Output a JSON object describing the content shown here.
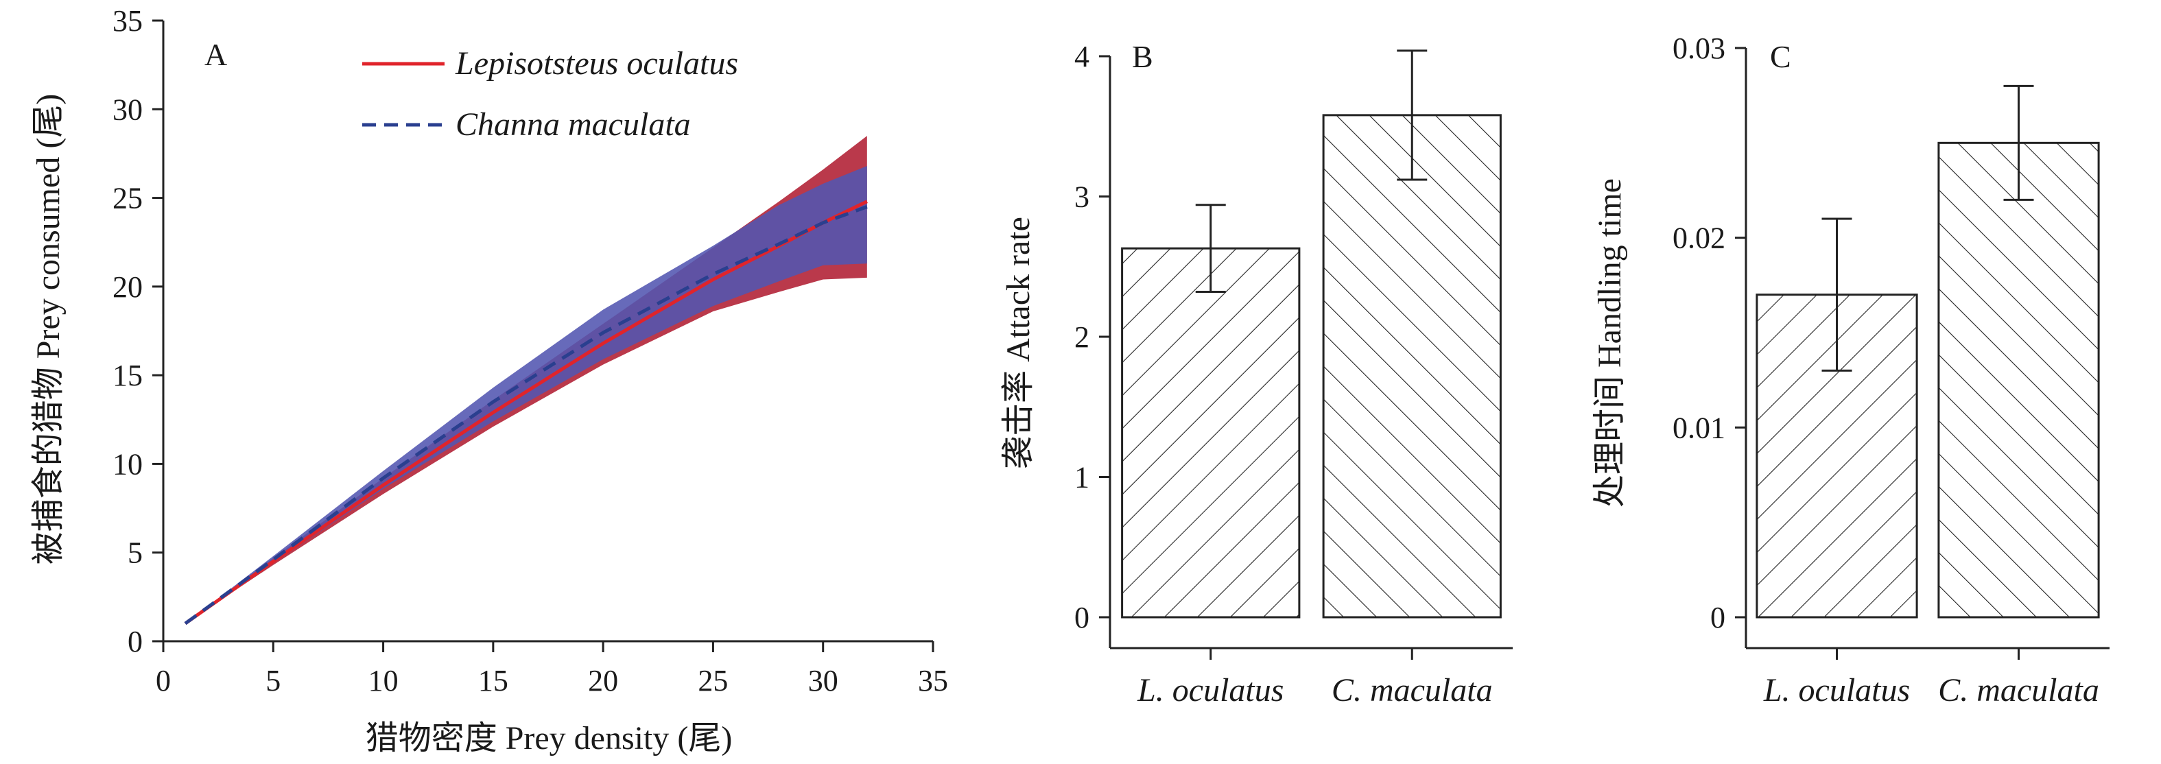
{
  "chart_data": [
    {
      "panel": "A",
      "type": "line",
      "xlabel": "猎物密度 Prey density (尾)",
      "ylabel": "被捕食的猎物 Prey consumed (尾)",
      "xlim": [
        0,
        35
      ],
      "ylim": [
        0,
        35
      ],
      "xticks": [
        0,
        5,
        10,
        15,
        20,
        25,
        30,
        35
      ],
      "yticks": [
        0,
        5,
        10,
        15,
        20,
        25,
        30,
        35
      ],
      "grid": false,
      "legend_position": "top-center",
      "series": [
        {
          "name": "Lepisotsteus oculatus",
          "style": "solid",
          "color": "#e0242b",
          "band_color": "#b01e32",
          "x": [
            1,
            5,
            10,
            15,
            20,
            25,
            28,
            30,
            32
          ],
          "y": [
            1,
            4.5,
            8.8,
            12.9,
            16.8,
            20.4,
            22.3,
            23.6,
            24.8
          ],
          "lower": [
            1,
            4.3,
            8.3,
            12.1,
            15.6,
            18.6,
            19.7,
            20.4,
            20.5
          ],
          "upper": [
            1,
            4.7,
            9.2,
            13.6,
            17.9,
            22.2,
            24.8,
            26.6,
            28.5
          ]
        },
        {
          "name": "Channa maculata",
          "style": "dashed",
          "color": "#2a3f8f",
          "band_color": "#5255b0",
          "x": [
            1,
            5,
            10,
            15,
            20,
            25,
            28,
            30,
            32
          ],
          "y": [
            1,
            4.6,
            9.2,
            13.5,
            17.4,
            20.7,
            22.4,
            23.6,
            24.5
          ],
          "lower": [
            1,
            4.4,
            8.6,
            12.4,
            15.9,
            18.9,
            20.3,
            21.2,
            21.3
          ],
          "upper": [
            1,
            4.8,
            9.6,
            14.3,
            18.7,
            22.3,
            24.6,
            25.8,
            26.8
          ]
        }
      ]
    },
    {
      "panel": "B",
      "type": "bar",
      "ylabel": "袭击率 Attack rate",
      "categories": [
        "L. oculatus",
        "C. maculata"
      ],
      "values": [
        2.63,
        3.58
      ],
      "error_low": [
        2.32,
        3.12
      ],
      "error_high": [
        2.94,
        4.04
      ],
      "ylim": [
        0,
        4
      ],
      "yticks": [
        "0",
        "1",
        "2",
        "3",
        "4"
      ],
      "pattern": [
        "forward-hatch",
        "backward-hatch"
      ]
    },
    {
      "panel": "C",
      "type": "bar",
      "ylabel": "处理时间 Handling time",
      "categories": [
        "L. oculatus",
        "C. maculata"
      ],
      "values": [
        0.017,
        0.025
      ],
      "error_low": [
        0.013,
        0.022
      ],
      "error_high": [
        0.021,
        0.028
      ],
      "ylim": [
        0,
        0.03
      ],
      "yticks": [
        "0",
        "0.01",
        "0.02",
        "0.03"
      ],
      "pattern": [
        "forward-hatch",
        "backward-hatch"
      ]
    }
  ]
}
